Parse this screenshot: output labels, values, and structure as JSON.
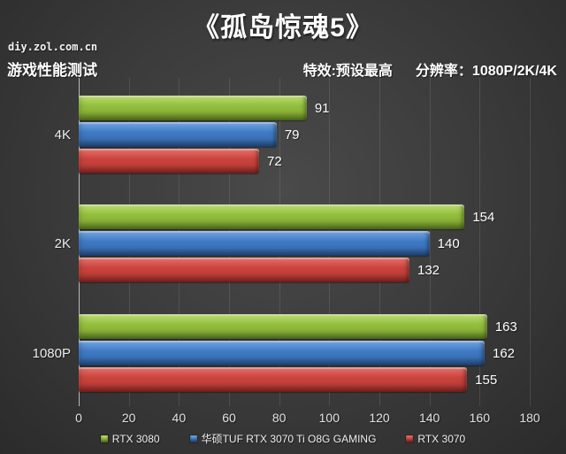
{
  "header": {
    "title": "《孤岛惊魂5》",
    "watermark": "diy.zol.com.cn",
    "subtitle_left": "游戏性能测试",
    "subtitle_effects": "特效:预设最高",
    "subtitle_resolution": "分辨率：1080P/2K/4K"
  },
  "colors": {
    "background_center": "#4a4a4a",
    "background_edge": "#2b2b2b",
    "text": "#ffffff",
    "gridline": "rgba(255,255,255,0.10)"
  },
  "chart_data": {
    "type": "bar",
    "orientation": "horizontal",
    "title": "《孤岛惊魂5》",
    "xlabel": "",
    "ylabel": "",
    "categories": [
      "4K",
      "2K",
      "1080P"
    ],
    "series": [
      {
        "name": "RTX 3080",
        "color": "#93bf3c",
        "color_light": "#bcdc72",
        "color_dark": "#6d9427",
        "values": [
          91,
          154,
          163
        ]
      },
      {
        "name": "华硕TUF RTX 3070 Ti O8G GAMING",
        "color": "#3f7ac4",
        "color_light": "#74a6e4",
        "color_dark": "#2b5c9e",
        "values": [
          79,
          140,
          162
        ]
      },
      {
        "name": "RTX 3070",
        "color": "#cc433d",
        "color_light": "#e3736a",
        "color_dark": "#a02e2b",
        "values": [
          72,
          132,
          155
        ]
      }
    ],
    "x_ticks": [
      0,
      20,
      40,
      60,
      80,
      100,
      120,
      140,
      160,
      180
    ],
    "xlim": [
      0,
      180
    ],
    "grid": true,
    "legend_position": "bottom"
  }
}
